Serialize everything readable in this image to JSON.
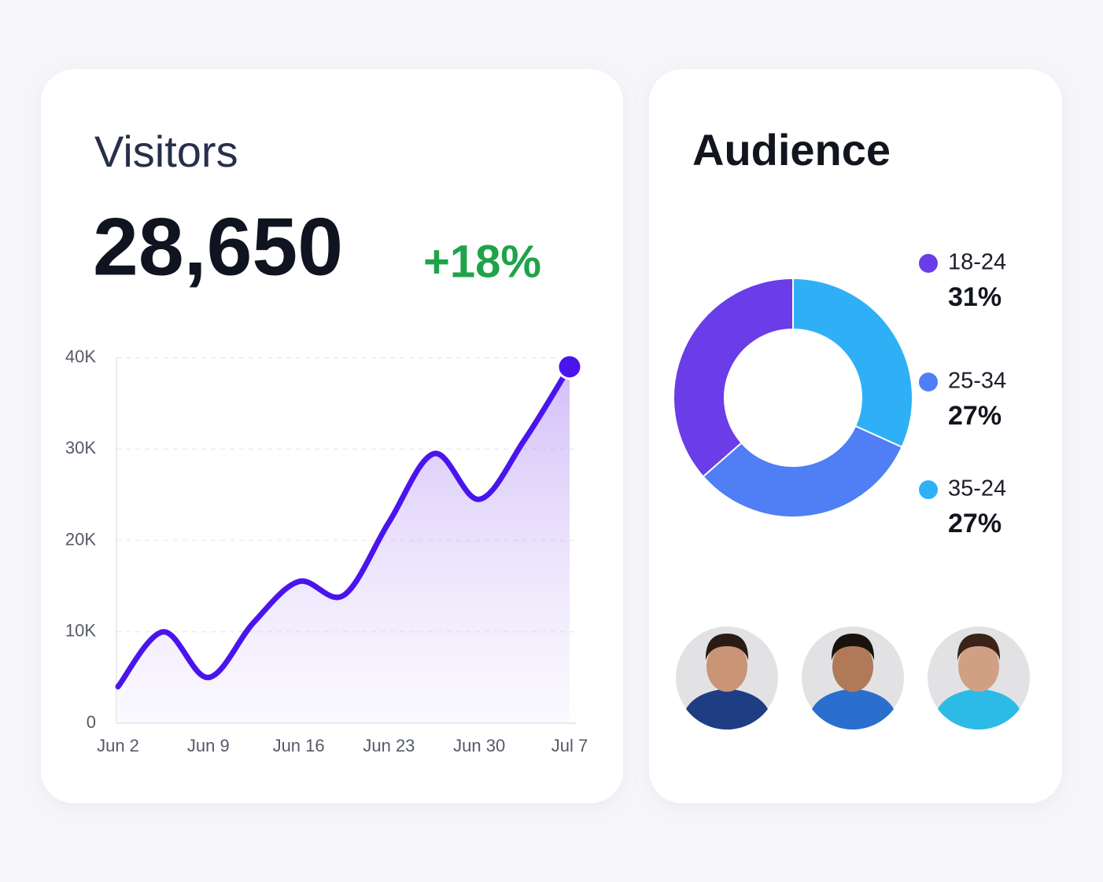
{
  "chart_data": [
    {
      "type": "line",
      "title": "Visitors",
      "headline": "28,650",
      "change": "+18%",
      "categories": [
        "Jun 2",
        null,
        "Jun 9",
        null,
        "Jun 16",
        null,
        "Jun 23",
        null,
        "Jun 30",
        null,
        "Jul 7"
      ],
      "values": [
        4000,
        10000,
        5000,
        11000,
        15500,
        14000,
        22000,
        29500,
        24500,
        31000,
        39000
      ],
      "color": "#4a14ee",
      "ylim": [
        0,
        40000
      ],
      "yticks": [
        0,
        {
          "value": 10000,
          "label": "10K"
        },
        {
          "value": 20000,
          "label": "20K"
        },
        {
          "value": 30000,
          "label": "30K"
        },
        {
          "value": 40000,
          "label": "40K"
        }
      ],
      "grid": true
    },
    {
      "type": "pie",
      "title": "Audience",
      "categories": [
        "18-24",
        "25-34",
        "35-24"
      ],
      "values": [
        31,
        27,
        27
      ],
      "value_labels": [
        "31%",
        "27%",
        "27%"
      ],
      "colors": [
        "#6a3de8",
        "#4f7ef5",
        "#2fb0f6"
      ]
    }
  ]
}
